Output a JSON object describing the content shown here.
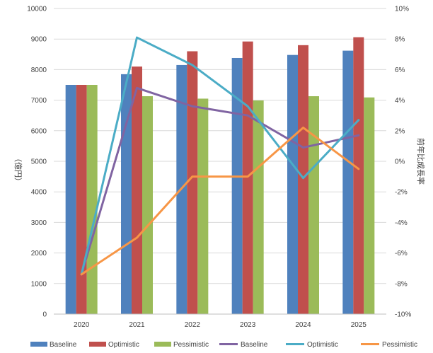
{
  "chart_data": {
    "type": "bar",
    "categories": [
      "2020",
      "2021",
      "2022",
      "2023",
      "2024",
      "2025"
    ],
    "ylabel": "（億円）",
    "y2label": "前年比成長率",
    "ylim": [
      0,
      10000
    ],
    "ystep": 1000,
    "y2lim": [
      -10,
      10
    ],
    "y2step": 2,
    "y2format": "percent",
    "grid": true,
    "legend_position": "bottom",
    "bar_series": [
      {
        "name": "Baseline",
        "color": "#4f81bd",
        "values": [
          7500,
          7850,
          8150,
          8380,
          8480,
          8620
        ]
      },
      {
        "name": "Optimistic",
        "color": "#c0504d",
        "values": [
          7500,
          8100,
          8600,
          8920,
          8800,
          9060
        ]
      },
      {
        "name": "Pessimistic",
        "color": "#9bbb59",
        "values": [
          7500,
          7130,
          7050,
          6990,
          7130,
          7090
        ]
      }
    ],
    "line_series": [
      {
        "name": "Baseline",
        "color": "#8064a2",
        "values": [
          -7.4,
          4.8,
          3.6,
          3.0,
          0.9,
          1.7
        ]
      },
      {
        "name": "Optimistic",
        "color": "#4bacc6",
        "values": [
          -7.4,
          8.1,
          6.3,
          3.6,
          -1.1,
          2.7
        ]
      },
      {
        "name": "Pessimistic",
        "color": "#f79646",
        "values": [
          -7.4,
          -5.0,
          -1.0,
          -1.0,
          2.2,
          -0.5
        ]
      }
    ]
  }
}
